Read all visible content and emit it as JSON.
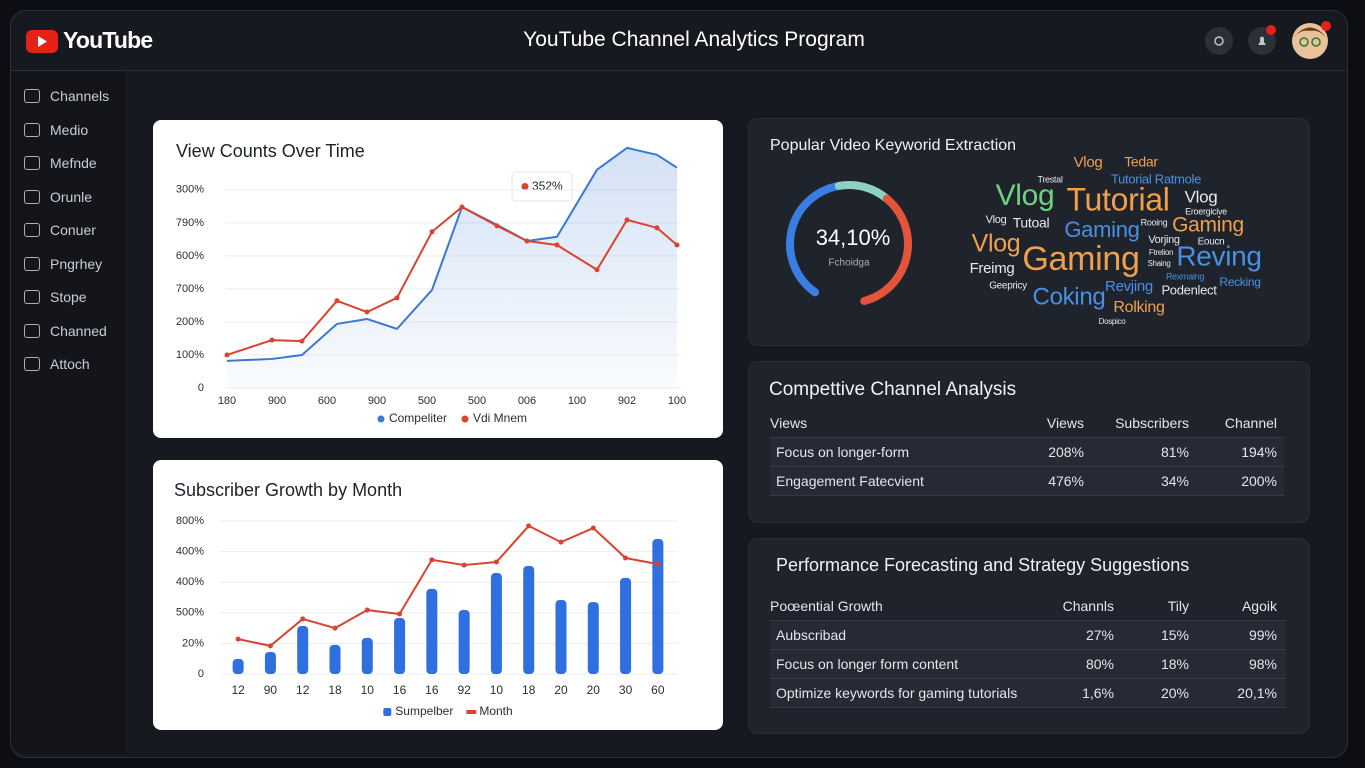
{
  "header": {
    "logo": "YouTube",
    "title": "YouTube Channel Analytics Program"
  },
  "sidebar": {
    "items": [
      "Channels",
      "Medio",
      "Mefnde",
      "Orunle",
      "Conuer",
      "Pngrhey",
      "Stope",
      "Channed",
      "Attoch"
    ]
  },
  "chart_data": [
    {
      "type": "line",
      "title": "View Counts Over Time",
      "annotation": "352%",
      "x": [
        0,
        0.9,
        1.5,
        2.2,
        2.8,
        3.4,
        4.1,
        4.7,
        5.4,
        6,
        6.6,
        7.4,
        8,
        8.6,
        9
      ],
      "xlim": [
        0,
        9
      ],
      "xticks": [
        {
          "value": 0,
          "label": "180"
        },
        {
          "value": 1,
          "label": "900"
        },
        {
          "value": 2,
          "label": "600"
        },
        {
          "value": 3,
          "label": "900"
        },
        {
          "value": 4,
          "label": "500"
        },
        {
          "value": 5,
          "label": "500"
        },
        {
          "value": 6,
          "label": "006"
        },
        {
          "value": 7,
          "label": "100"
        },
        {
          "value": 8,
          "label": "902"
        },
        {
          "value": 9,
          "label": "100"
        }
      ],
      "ylim": [
        0,
        760
      ],
      "yticks": [
        0,
        {
          "value": 100,
          "label": "100%"
        },
        {
          "value": 200,
          "label": "200%"
        },
        {
          "value": 300,
          "label": "700%"
        },
        {
          "value": 400,
          "label": "600%"
        },
        {
          "value": 500,
          "label": "790%"
        },
        {
          "value": 600,
          "label": "300%"
        }
      ],
      "grid": true,
      "legend": "bottom",
      "series": [
        {
          "name": "Compeliter",
          "color": "#3a78d4",
          "area": true,
          "values": [
            82,
            88,
            100,
            194,
            209,
            179,
            297,
            548,
            494,
            445,
            458,
            661,
            727,
            706,
            667
          ]
        },
        {
          "name": "Vdi Mnem",
          "color": "#d9432f",
          "area": false,
          "values": [
            100,
            145,
            142,
            264,
            230,
            273,
            473,
            548,
            491,
            445,
            433,
            358,
            509,
            485,
            433
          ]
        }
      ]
    },
    {
      "type": "bar",
      "title": "Subscriber Growth by Month",
      "categories": [
        "12",
        "90",
        "12",
        "18",
        "10",
        "16",
        "16",
        "92",
        "10",
        "18",
        "20",
        "20",
        "30",
        "60"
      ],
      "ylim": [
        0,
        500
      ],
      "yticks": [
        0,
        {
          "value": 100,
          "label": "20%"
        },
        {
          "value": 200,
          "label": "500%"
        },
        {
          "value": 300,
          "label": "400%"
        },
        {
          "value": 400,
          "label": "400%"
        },
        {
          "value": 500,
          "label": "800%"
        }
      ],
      "grid": true,
      "legend": "bottom",
      "series": [
        {
          "name": "Sumpelber",
          "color": "#2f6fe0",
          "type": "bar",
          "values": [
            49,
            72,
            157,
            95,
            118,
            183,
            278,
            209,
            330,
            353,
            242,
            235,
            314,
            441
          ]
        },
        {
          "name": "Month",
          "color": "#d9432f",
          "type": "line",
          "values": [
            114,
            92,
            180,
            150,
            209,
            196,
            373,
            356,
            366,
            484,
            431,
            477,
            379,
            359
          ]
        }
      ]
    }
  ],
  "keywords": {
    "title": "Popular Video Keyworid Extraction",
    "gauge_label": "34,10%",
    "gauge_caption": "Fchoidga",
    "words": [
      "Vlog",
      "Tedar",
      "Trestal",
      "Tutorial Ratmole",
      "Vlog",
      "Tutorial",
      "Vlog",
      "Eroergicive",
      "Vlog",
      "Tutoal",
      "Gaming",
      "Rooing",
      "Gaming",
      "Vorjing",
      "Eoucn",
      "Vlog",
      "Gaming",
      "Reving",
      "Freimg",
      "Ftrelion",
      "Shaing",
      "Rexmaing",
      "Recking",
      "Geepricy",
      "Revjing",
      "Podenlect",
      "Coking",
      "Rolking",
      "Dospico"
    ]
  },
  "competitive": {
    "title": "Compettive Channel Analysis",
    "columns": [
      "Views",
      "Views",
      "Subscribers",
      "Channel"
    ],
    "rows": [
      [
        "Focus on longer-form",
        "208%",
        "81%",
        "194%"
      ],
      [
        "Engagement Fatecvient",
        "476%",
        "34%",
        "200%"
      ]
    ]
  },
  "forecast": {
    "title": "Performance Forecasting and Strategy Suggestions",
    "columns": [
      "Poœential Growth",
      "Channls",
      "Tily",
      "Agoik"
    ],
    "rows": [
      [
        "Aubscribad",
        "27%",
        "15%",
        "99%"
      ],
      [
        "Focus on longer form content",
        "80%",
        "18%",
        "98%"
      ],
      [
        "Optimize keywords for gaming tutorials",
        "1,6%",
        "20%",
        "20,1%"
      ]
    ]
  }
}
